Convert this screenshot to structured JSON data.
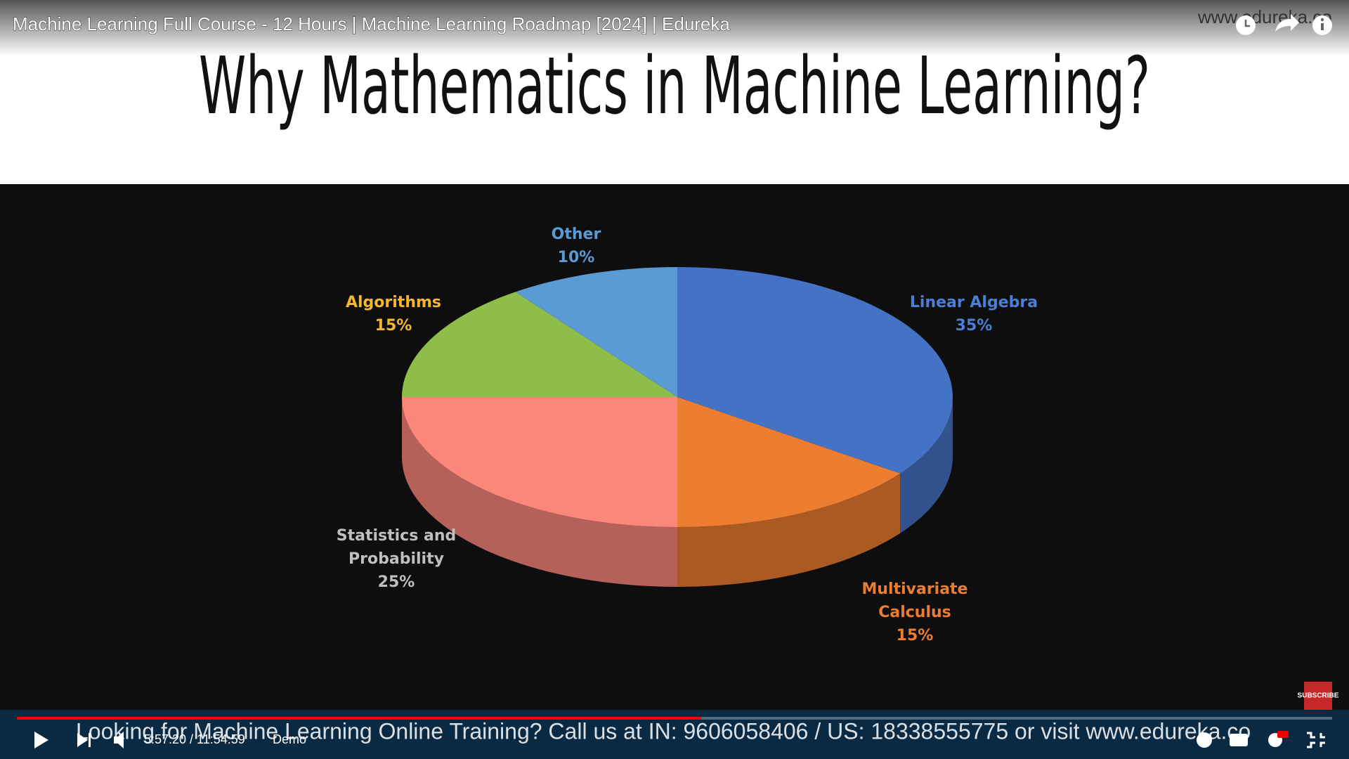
{
  "video_title": "Machine Learning Full Course - 12 Hours | Machine Learning Roadmap [2024] | Edureka",
  "watermark": "www.edureka.co",
  "slide_heading": "Why Mathematics in Machine Learning?",
  "chart_data": {
    "type": "pie",
    "categories": [
      "Linear Algebra",
      "Multivariate Calculus",
      "Statistics and Probability",
      "Algorithms",
      "Other"
    ],
    "values": [
      35,
      15,
      25,
      15,
      10
    ],
    "value_labels": [
      "35%",
      "15%",
      "25%",
      "15%",
      "10%"
    ],
    "colors": [
      "#4472c4",
      "#ed7d31",
      "#fb877c",
      "#8fbd4a",
      "#5b9bd5"
    ],
    "label_colors": [
      "#4a7fd6",
      "#ed7d31",
      "#bfbfbf",
      "#f5b731",
      "#5b9bd5"
    ]
  },
  "player": {
    "time": "5:57:20 / 11:54:59",
    "chapter": "Demo"
  },
  "ticker": "Looking for Machine Learning Online Training? Call us at IN: 9606058406 / US: 18338555775 or visit www.edureka.co",
  "subscribe_badge": "SUBSCRIBE"
}
